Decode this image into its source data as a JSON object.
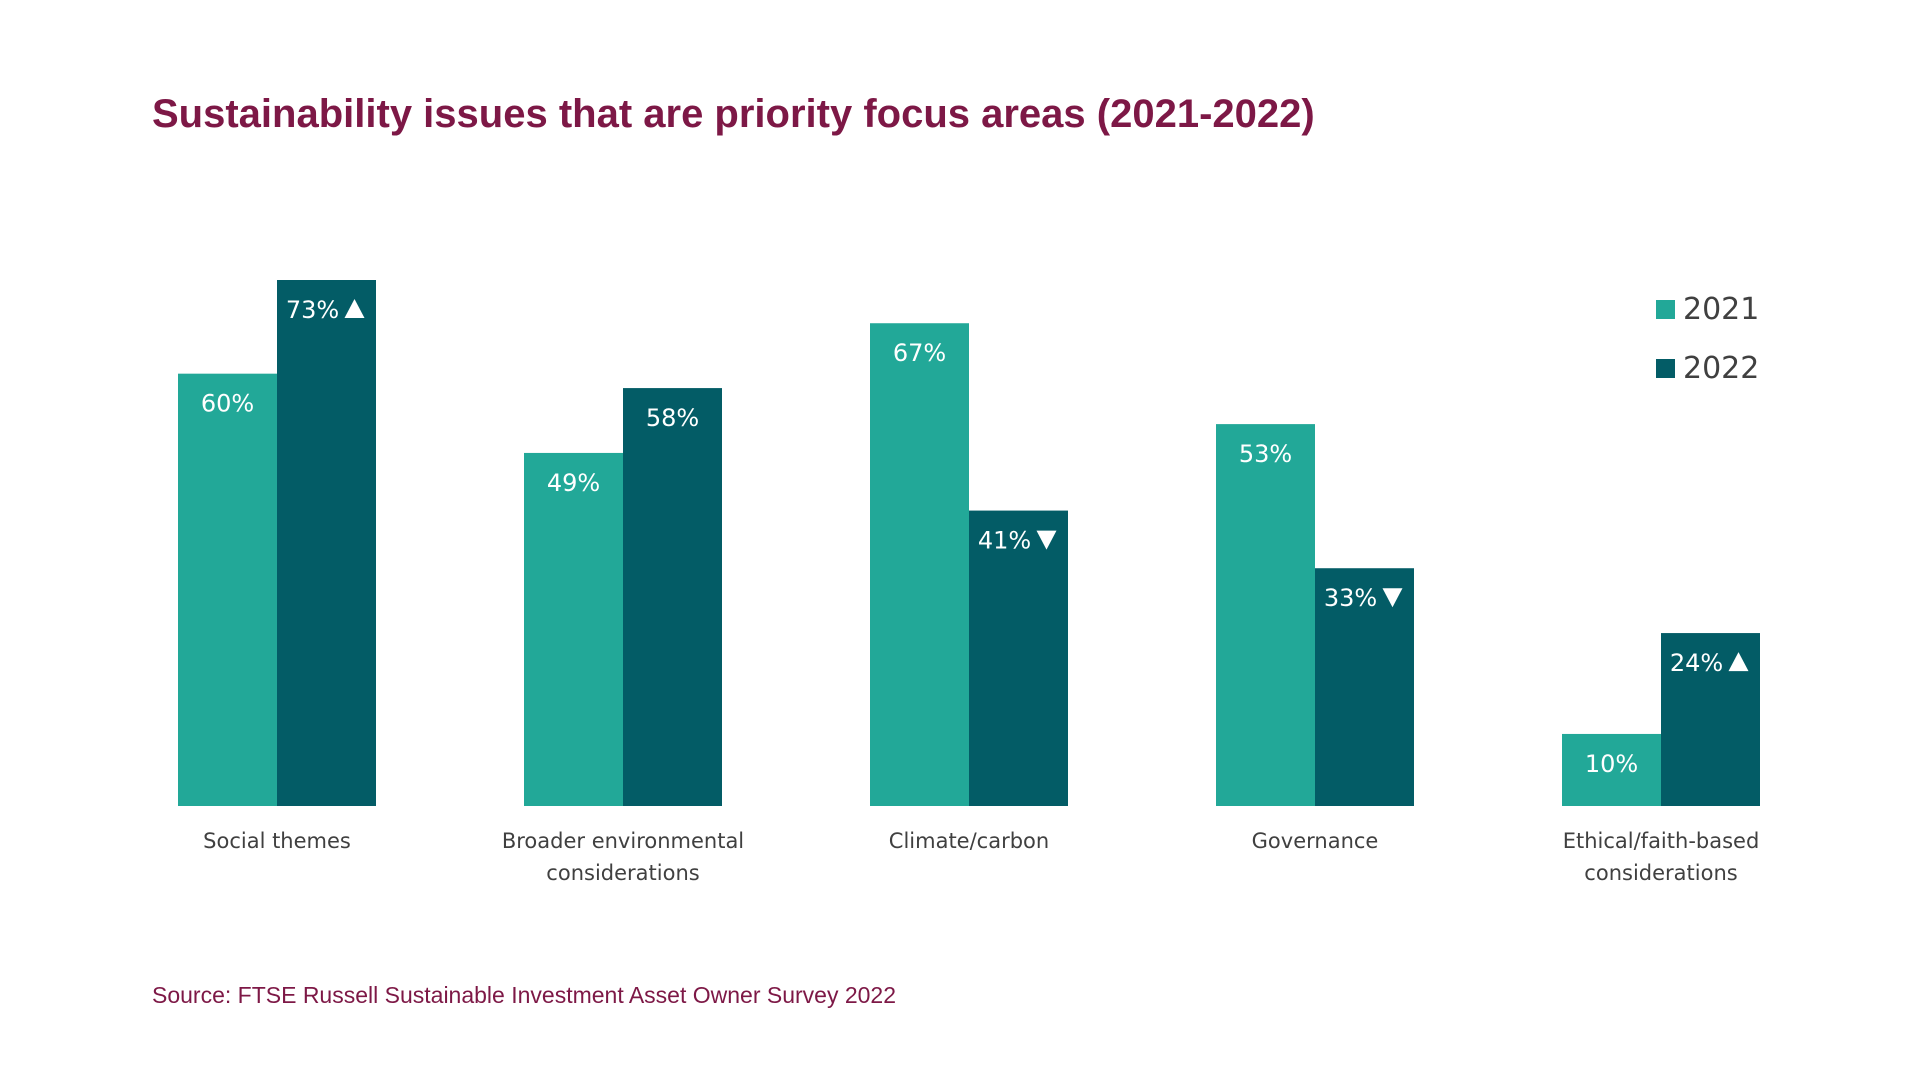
{
  "page": {
    "title": "Sustainability issues that are priority focus areas (2021-2022)",
    "source": "Source: FTSE Russell Sustainable Investment Asset Owner Survey 2022"
  },
  "chart_data": {
    "type": "bar",
    "title": "Sustainability issues that are priority focus areas (2021-2022)",
    "categories": [
      [
        "Social themes"
      ],
      [
        "Broader environmental",
        "considerations"
      ],
      [
        "Climate/carbon"
      ],
      [
        "Governance"
      ],
      [
        "Ethical/faith-based",
        "considerations"
      ]
    ],
    "series": [
      {
        "name": "2021",
        "color": "#22a898",
        "values": [
          60,
          49,
          67,
          53,
          10
        ],
        "labels": [
          "60%",
          "49%",
          "67%",
          "53%",
          "10%"
        ],
        "trend": [
          "",
          "",
          "",
          "",
          ""
        ]
      },
      {
        "name": "2022",
        "color": "#035c66",
        "values": [
          73,
          58,
          41,
          33,
          24
        ],
        "labels": [
          "73%",
          "58%",
          "41%",
          "33%",
          "24%"
        ],
        "trend": [
          "up",
          "",
          "down",
          "down",
          "up"
        ]
      }
    ],
    "ylim": [
      0,
      73
    ],
    "grid": false,
    "legend_position": "top-right",
    "xlabel": "",
    "ylabel": ""
  }
}
